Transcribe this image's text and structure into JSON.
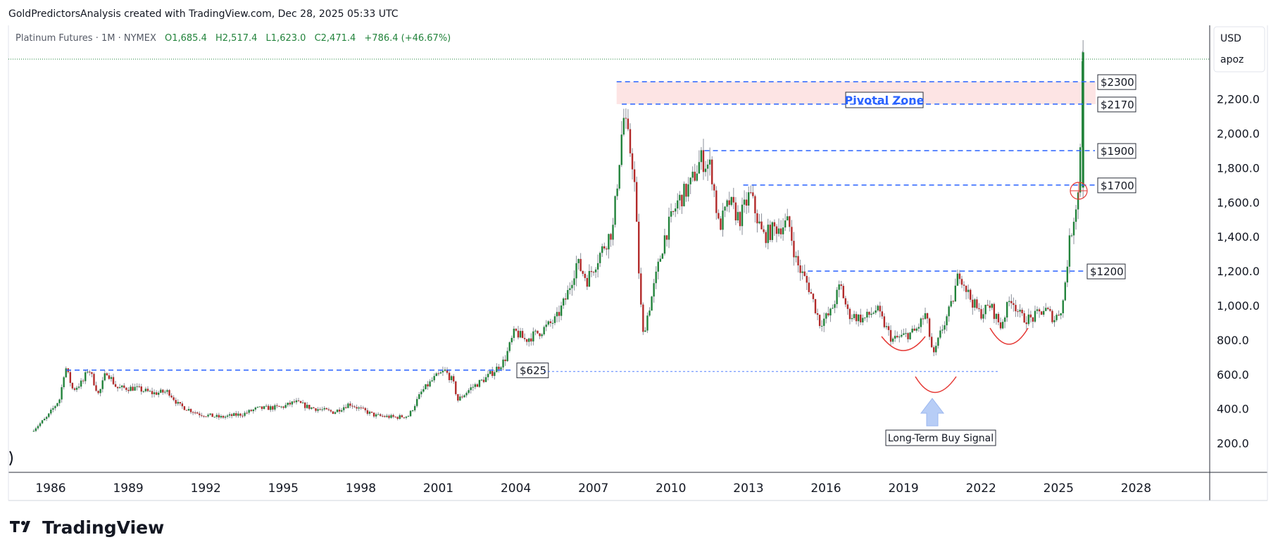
{
  "header": {
    "attribution": "GoldPredictorsAnalysis created with TradingView.com, Dec 28, 2025 05:33 UTC"
  },
  "legend": {
    "symbol": "Platinum Futures · 1M · NYMEX",
    "open": "O1,685.4",
    "high": "H2,517.4",
    "low": "L1,623.0",
    "close": "C2,471.4",
    "change": "+786.4 (+46.67%)"
  },
  "price_scale": {
    "currency": "USD",
    "mode": "apoz"
  },
  "brand": {
    "text": "TradingView"
  },
  "colors": {
    "up": "#22833b",
    "down": "#b22a2a",
    "wick": "#8a8f99",
    "level_line": "#2962ff",
    "pivot_fill": "#fde4e4",
    "arc": "#e53935",
    "arrow": "#b7cdf6"
  },
  "chart_data": {
    "type": "candlestick",
    "timeframe": "1M",
    "symbol": "Platinum Futures",
    "exchange": "NYMEX",
    "x_ticks": [
      1986,
      1989,
      1992,
      1995,
      1998,
      2001,
      2004,
      2007,
      2010,
      2013,
      2016,
      2019,
      2022,
      2025,
      2028
    ],
    "y_ticks": [
      "200.0",
      "400.0",
      "600.0",
      "800.0",
      "1,000.0",
      "1,200.0",
      "1,400.0",
      "1,600.0",
      "1,800.0",
      "2,000.0",
      "2,200.0"
    ],
    "xlim": [
      1984.4,
      2031.2
    ],
    "ylim": [
      0,
      2620
    ],
    "last_close": 2471.4,
    "price_path": [
      [
        1985.3,
        270
      ],
      [
        1985.9,
        350
      ],
      [
        1986.4,
        460
      ],
      [
        1986.6,
        650
      ],
      [
        1986.9,
        510
      ],
      [
        1987.3,
        560
      ],
      [
        1987.5,
        640
      ],
      [
        1987.9,
        480
      ],
      [
        1988.2,
        620
      ],
      [
        1988.6,
        520
      ],
      [
        1989.3,
        520
      ],
      [
        1990.0,
        490
      ],
      [
        1990.6,
        500
      ],
      [
        1991.0,
        420
      ],
      [
        1991.8,
        370
      ],
      [
        1992.6,
        350
      ],
      [
        1993.5,
        370
      ],
      [
        1994.0,
        400
      ],
      [
        1995.0,
        410
      ],
      [
        1995.5,
        440
      ],
      [
        1996.0,
        410
      ],
      [
        1997.0,
        380
      ],
      [
        1997.6,
        430
      ],
      [
        1998.0,
        400
      ],
      [
        1998.6,
        360
      ],
      [
        1999.4,
        350
      ],
      [
        1999.9,
        360
      ],
      [
        2000.4,
        500
      ],
      [
        2000.9,
        580
      ],
      [
        2001.3,
        620
      ],
      [
        2001.6,
        560
      ],
      [
        2001.8,
        450
      ],
      [
        2002.3,
        520
      ],
      [
        2002.9,
        580
      ],
      [
        2003.2,
        620
      ],
      [
        2003.6,
        680
      ],
      [
        2004.0,
        850
      ],
      [
        2004.4,
        800
      ],
      [
        2005.0,
        850
      ],
      [
        2005.6,
        920
      ],
      [
        2006.0,
        1050
      ],
      [
        2006.4,
        1250
      ],
      [
        2006.8,
        1150
      ],
      [
        2007.3,
        1300
      ],
      [
        2007.8,
        1450
      ],
      [
        2008.2,
        2100
      ],
      [
        2008.6,
        1800
      ],
      [
        2008.8,
        1200
      ],
      [
        2008.95,
        820
      ],
      [
        2009.3,
        1050
      ],
      [
        2009.8,
        1400
      ],
      [
        2010.3,
        1600
      ],
      [
        2010.8,
        1700
      ],
      [
        2011.2,
        1850
      ],
      [
        2011.6,
        1800
      ],
      [
        2011.9,
        1450
      ],
      [
        2012.3,
        1600
      ],
      [
        2012.7,
        1500
      ],
      [
        2013.1,
        1650
      ],
      [
        2013.6,
        1400
      ],
      [
        2014.1,
        1450
      ],
      [
        2014.6,
        1480
      ],
      [
        2014.9,
        1250
      ],
      [
        2015.4,
        1100
      ],
      [
        2015.8,
        900
      ],
      [
        2016.2,
        950
      ],
      [
        2016.6,
        1120
      ],
      [
        2016.9,
        950
      ],
      [
        2017.5,
        920
      ],
      [
        2018.0,
        980
      ],
      [
        2018.6,
        800
      ],
      [
        2019.0,
        820
      ],
      [
        2019.5,
        850
      ],
      [
        2019.9,
        950
      ],
      [
        2020.2,
        700
      ],
      [
        2020.5,
        850
      ],
      [
        2020.9,
        1000
      ],
      [
        2021.2,
        1200
      ],
      [
        2021.6,
        1050
      ],
      [
        2022.0,
        950
      ],
      [
        2022.4,
        1000
      ],
      [
        2022.8,
        880
      ],
      [
        2023.2,
        1050
      ],
      [
        2023.6,
        930
      ],
      [
        2024.0,
        920
      ],
      [
        2024.5,
        980
      ],
      [
        2024.9,
        920
      ],
      [
        2025.2,
        1000
      ],
      [
        2025.45,
        1350
      ],
      [
        2025.7,
        1580
      ],
      [
        2025.85,
        1685
      ],
      [
        2025.95,
        2471.4
      ]
    ],
    "horizontal_levels": [
      {
        "price": 2300,
        "label": "$2300",
        "from": 2007.9
      },
      {
        "price": 2170,
        "label": "$2170",
        "from": 2008.1
      },
      {
        "price": 1900,
        "label": "$1900",
        "from": 2011.3
      },
      {
        "price": 1700,
        "label": "$1700",
        "from": 2012.8
      },
      {
        "price": 1200,
        "label": "$1200",
        "from": 2015.3
      },
      {
        "price": 625,
        "label": "$625",
        "from": 1986.6
      }
    ],
    "zone": {
      "label": "Pivotal Zone",
      "from_price": 2170,
      "to_price": 2300,
      "from": 2007.9
    },
    "annotations": [
      {
        "label": "Long-Term Buy Signal",
        "at": 2020.3
      }
    ]
  }
}
